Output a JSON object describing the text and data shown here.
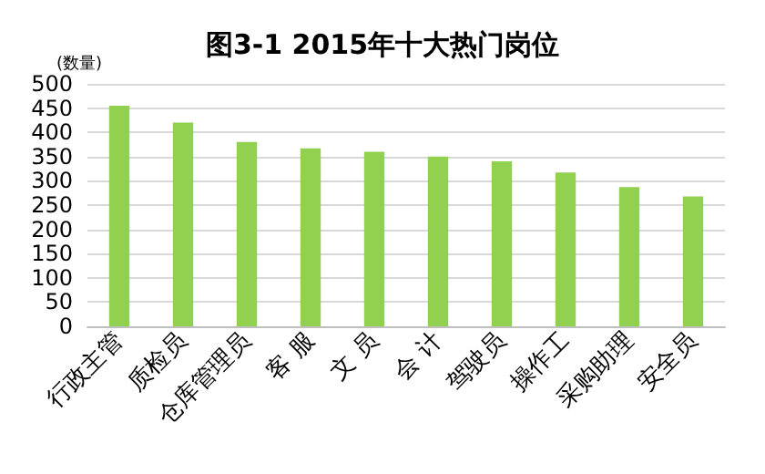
{
  "chart_data": {
    "type": "bar",
    "title": "图3-1 2015年十大热门岗位",
    "ylabel": "(数量)",
    "categories": [
      "行政主管",
      "质检员",
      "仓库管理员",
      "客 服",
      "文 员",
      "会 计",
      "驾驶员",
      "操作工",
      "采购助理",
      "安全员"
    ],
    "values": [
      455,
      420,
      380,
      367,
      360,
      350,
      340,
      317,
      287,
      268
    ],
    "color": "#92d050",
    "ylim": [
      0,
      500
    ],
    "yticks": [
      0,
      50,
      100,
      150,
      200,
      250,
      300,
      350,
      400,
      450,
      500
    ],
    "grid": "y"
  }
}
